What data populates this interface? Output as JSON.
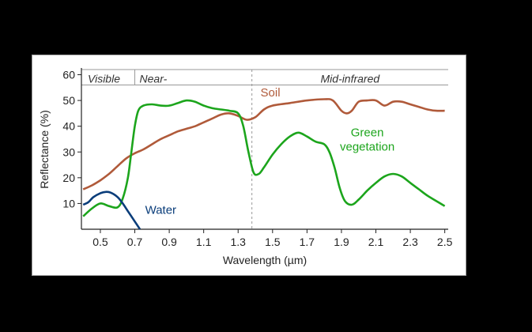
{
  "chart_data": {
    "type": "line",
    "xlabel": "Wavelength (µm)",
    "ylabel": "Reflectance (%)",
    "xlim": [
      0.39,
      2.52
    ],
    "ylim": [
      0,
      62
    ],
    "xticks": [
      0.5,
      0.7,
      0.9,
      1.1,
      1.3,
      1.5,
      1.7,
      1.9,
      2.1,
      2.3,
      2.5
    ],
    "xtick_labels": [
      "0.5",
      "0.7",
      "0.9",
      "1.1",
      "1.3",
      "1.5",
      "1.7",
      "1.9",
      "2.1",
      "2.3",
      "2.5"
    ],
    "yticks": [
      10,
      20,
      30,
      40,
      50,
      60
    ],
    "ytick_labels": [
      "10",
      "20",
      "30",
      "40",
      "50",
      "60"
    ],
    "regions": [
      {
        "label": "Visible",
        "start": 0.39,
        "end": 0.7
      },
      {
        "label": "Near-",
        "start": 0.7,
        "end": 1.38
      },
      {
        "label": "Mid-infrared",
        "start": 1.38,
        "end": 2.52
      }
    ],
    "region_band": [
      56,
      62
    ],
    "series": [
      {
        "name": "Soil",
        "label_lines": [
          "Soil"
        ],
        "color": "#b05a3a",
        "label_at": [
          1.43,
          51.5
        ],
        "x": [
          0.4,
          0.45,
          0.5,
          0.55,
          0.6,
          0.65,
          0.7,
          0.75,
          0.8,
          0.85,
          0.9,
          0.95,
          1.0,
          1.05,
          1.1,
          1.15,
          1.2,
          1.25,
          1.3,
          1.35,
          1.4,
          1.45,
          1.5,
          1.6,
          1.7,
          1.8,
          1.85,
          1.9,
          1.93,
          1.96,
          2.0,
          2.05,
          2.1,
          2.15,
          2.2,
          2.25,
          2.3,
          2.35,
          2.4,
          2.45,
          2.5
        ],
        "y": [
          15.5,
          17,
          19,
          21.5,
          24.5,
          27.5,
          29.5,
          31,
          33,
          35,
          36.5,
          38,
          39,
          40,
          41.5,
          43,
          44.5,
          45,
          44,
          42.5,
          43.5,
          46.5,
          48,
          49,
          50,
          50.5,
          50,
          46,
          45,
          46,
          49.5,
          50,
          50,
          48,
          49.5,
          49.5,
          48.5,
          47.5,
          46.5,
          46,
          46
        ]
      },
      {
        "name": "Green vegetation",
        "label_lines": [
          "Green",
          "vegetation"
        ],
        "color": "#1ca51c",
        "label_at": [
          2.05,
          36
        ],
        "x": [
          0.4,
          0.45,
          0.5,
          0.55,
          0.6,
          0.63,
          0.66,
          0.68,
          0.7,
          0.72,
          0.75,
          0.8,
          0.85,
          0.9,
          0.95,
          1.0,
          1.05,
          1.1,
          1.15,
          1.2,
          1.25,
          1.3,
          1.33,
          1.36,
          1.39,
          1.42,
          1.45,
          1.5,
          1.55,
          1.6,
          1.65,
          1.7,
          1.75,
          1.8,
          1.83,
          1.86,
          1.89,
          1.92,
          1.96,
          2.0,
          2.05,
          2.1,
          2.15,
          2.2,
          2.25,
          2.3,
          2.35,
          2.4,
          2.45,
          2.5
        ],
        "y": [
          5,
          8,
          10,
          9,
          8.5,
          12,
          20,
          30,
          40,
          46,
          48,
          48.5,
          48,
          48,
          49,
          50,
          49.5,
          48,
          47,
          46.5,
          46,
          45,
          40,
          30,
          22,
          21.5,
          24,
          29,
          33,
          36,
          37.5,
          36,
          34,
          33,
          30,
          24,
          16,
          11,
          9.5,
          11.5,
          15,
          18,
          20.5,
          21.5,
          20.5,
          18,
          15.5,
          13,
          11,
          9
        ]
      },
      {
        "name": "Water",
        "label_lines": [
          "Water"
        ],
        "color": "#0a3d7a",
        "label_at": [
          0.76,
          6
        ],
        "x": [
          0.4,
          0.43,
          0.46,
          0.5,
          0.53,
          0.56,
          0.6,
          0.63,
          0.66,
          0.7,
          0.73
        ],
        "y": [
          9.5,
          10.5,
          12.5,
          14,
          14.5,
          14.2,
          12.5,
          10,
          7,
          3,
          0
        ]
      }
    ]
  }
}
